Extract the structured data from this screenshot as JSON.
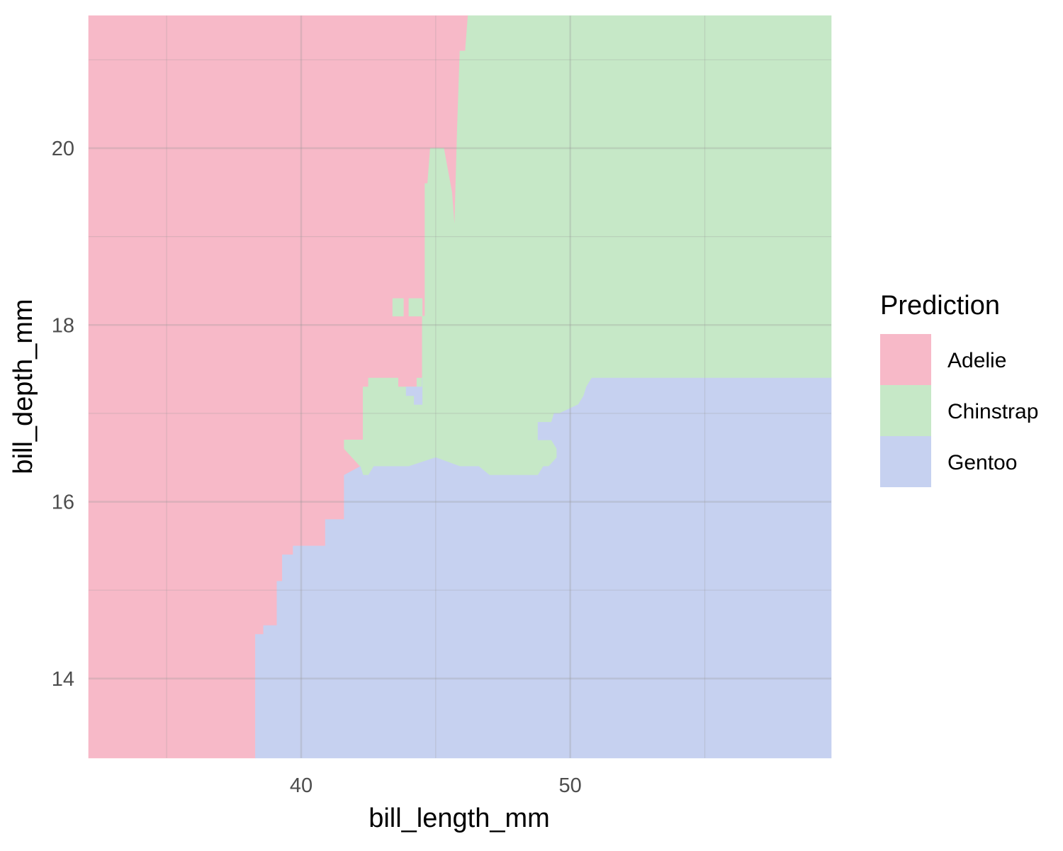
{
  "chart_data": {
    "type": "heatmap",
    "title": "",
    "xlabel": "bill_length_mm",
    "ylabel": "bill_depth_mm",
    "xlim": [
      32.1,
      59.7
    ],
    "ylim": [
      13.1,
      21.5
    ],
    "x_ticks": [
      40,
      50
    ],
    "y_ticks": [
      14,
      16,
      18,
      20
    ],
    "x_tick_labels": [
      "40",
      "50"
    ],
    "y_tick_labels": [
      "14",
      "16",
      "18",
      "20"
    ],
    "grid": true,
    "legend": {
      "title": "Prediction",
      "placement": "right",
      "entries": [
        {
          "label": "Adelie",
          "color": "#f7b9c8"
        },
        {
          "label": "Chinstrap",
          "color": "#c6e8c7"
        },
        {
          "label": "Gentoo",
          "color": "#c6d1f0"
        }
      ]
    },
    "regions": [
      {
        "class": "Adelie",
        "color": "#f7b9c8",
        "polygon": [
          [
            32.1,
            13.1
          ],
          [
            38.3,
            13.1
          ],
          [
            38.3,
            14.5
          ],
          [
            38.6,
            14.5
          ],
          [
            38.6,
            14.6
          ],
          [
            39.1,
            14.6
          ],
          [
            39.1,
            15.1
          ],
          [
            39.3,
            15.1
          ],
          [
            39.3,
            15.4
          ],
          [
            39.7,
            15.4
          ],
          [
            39.7,
            15.5
          ],
          [
            40.2,
            15.5
          ],
          [
            40.2,
            15.5
          ],
          [
            40.9,
            15.5
          ],
          [
            40.9,
            15.8
          ],
          [
            41.6,
            15.8
          ],
          [
            41.6,
            16.3
          ],
          [
            42.2,
            16.3
          ],
          [
            42.2,
            16.4
          ],
          [
            42.3,
            16.4
          ],
          [
            42.3,
            17.3
          ],
          [
            42.5,
            17.3
          ],
          [
            42.5,
            17.4
          ],
          [
            43.0,
            17.4
          ],
          [
            43.0,
            17.4
          ],
          [
            43.6,
            17.4
          ],
          [
            43.6,
            17.3
          ],
          [
            44.3,
            17.3
          ],
          [
            44.3,
            17.4
          ],
          [
            44.5,
            17.4
          ],
          [
            44.5,
            18.1
          ],
          [
            44.6,
            18.1
          ],
          [
            44.6,
            18.6
          ],
          [
            44.6,
            19.6
          ],
          [
            44.7,
            19.6
          ],
          [
            44.8,
            20.0
          ],
          [
            45.3,
            20.0
          ],
          [
            45.6,
            19.5
          ],
          [
            45.7,
            19.1
          ],
          [
            45.8,
            20.2
          ],
          [
            45.9,
            21.1
          ],
          [
            46.1,
            21.1
          ],
          [
            46.2,
            21.5
          ],
          [
            32.1,
            21.5
          ]
        ]
      },
      {
        "class": "Chinstrap",
        "color": "#c6e8c7",
        "polygon": [
          [
            46.2,
            21.5
          ],
          [
            59.7,
            21.5
          ],
          [
            59.7,
            17.4
          ],
          [
            50.8,
            17.4
          ],
          [
            50.6,
            17.3
          ],
          [
            50.5,
            17.2
          ],
          [
            50.3,
            17.1
          ],
          [
            49.6,
            17.0
          ],
          [
            49.4,
            17.0
          ],
          [
            49.3,
            16.9
          ],
          [
            48.8,
            16.9
          ],
          [
            48.8,
            16.7
          ],
          [
            49.3,
            16.7
          ],
          [
            49.5,
            16.6
          ],
          [
            49.5,
            16.5
          ],
          [
            49.2,
            16.4
          ],
          [
            49.0,
            16.4
          ],
          [
            48.8,
            16.3
          ],
          [
            47.0,
            16.3
          ],
          [
            46.6,
            16.4
          ],
          [
            45.9,
            16.4
          ],
          [
            45.0,
            16.5
          ],
          [
            44.0,
            16.4
          ],
          [
            43.3,
            16.4
          ],
          [
            42.7,
            16.4
          ],
          [
            42.5,
            16.3
          ],
          [
            42.3,
            16.3
          ],
          [
            42.2,
            16.4
          ],
          [
            41.6,
            16.6
          ],
          [
            41.6,
            16.7
          ],
          [
            42.3,
            16.7
          ],
          [
            42.3,
            17.3
          ],
          [
            42.5,
            17.3
          ],
          [
            42.5,
            17.4
          ],
          [
            43.0,
            17.4
          ],
          [
            43.6,
            17.4
          ],
          [
            43.6,
            17.3
          ],
          [
            44.3,
            17.3
          ],
          [
            44.3,
            17.4
          ],
          [
            44.5,
            17.4
          ],
          [
            44.5,
            18.1
          ],
          [
            44.6,
            18.1
          ],
          [
            44.6,
            18.6
          ],
          [
            44.6,
            19.6
          ],
          [
            44.7,
            19.6
          ],
          [
            44.8,
            20.0
          ],
          [
            45.3,
            20.0
          ],
          [
            45.6,
            19.5
          ],
          [
            45.7,
            19.1
          ],
          [
            45.8,
            20.2
          ],
          [
            45.9,
            21.1
          ],
          [
            46.1,
            21.1
          ]
        ]
      },
      {
        "class": "Gentoo",
        "color": "#c6d1f0",
        "polygon": [
          [
            38.3,
            13.1
          ],
          [
            59.7,
            13.1
          ],
          [
            59.7,
            17.4
          ],
          [
            50.8,
            17.4
          ],
          [
            50.6,
            17.3
          ],
          [
            50.5,
            17.2
          ],
          [
            50.3,
            17.1
          ],
          [
            49.6,
            17.0
          ],
          [
            49.4,
            17.0
          ],
          [
            49.3,
            16.9
          ],
          [
            48.8,
            16.9
          ],
          [
            48.8,
            16.7
          ],
          [
            49.3,
            16.7
          ],
          [
            49.5,
            16.6
          ],
          [
            49.5,
            16.5
          ],
          [
            49.2,
            16.4
          ],
          [
            49.0,
            16.4
          ],
          [
            48.8,
            16.3
          ],
          [
            47.0,
            16.3
          ],
          [
            46.6,
            16.4
          ],
          [
            45.9,
            16.4
          ],
          [
            45.0,
            16.5
          ],
          [
            44.0,
            16.4
          ],
          [
            43.3,
            16.4
          ],
          [
            42.7,
            16.4
          ],
          [
            42.5,
            16.3
          ],
          [
            42.3,
            16.3
          ],
          [
            42.2,
            16.4
          ],
          [
            41.6,
            16.3
          ],
          [
            41.6,
            15.8
          ],
          [
            40.9,
            15.8
          ],
          [
            40.9,
            15.5
          ],
          [
            40.2,
            15.5
          ],
          [
            39.7,
            15.5
          ],
          [
            39.7,
            15.4
          ],
          [
            39.3,
            15.4
          ],
          [
            39.3,
            15.1
          ],
          [
            39.1,
            15.1
          ],
          [
            39.1,
            14.6
          ],
          [
            38.6,
            14.6
          ],
          [
            38.6,
            14.5
          ],
          [
            38.3,
            14.5
          ]
        ]
      },
      {
        "class": "Chinstrap",
        "color": "#c6e8c7",
        "polygon": [
          [
            43.4,
            18.1
          ],
          [
            43.8,
            18.1
          ],
          [
            43.8,
            18.3
          ],
          [
            43.4,
            18.3
          ]
        ]
      },
      {
        "class": "Chinstrap",
        "color": "#c6e8c7",
        "polygon": [
          [
            44.0,
            18.1
          ],
          [
            44.5,
            18.1
          ],
          [
            44.5,
            18.3
          ],
          [
            44.0,
            18.3
          ]
        ]
      },
      {
        "class": "Gentoo",
        "color": "#c6d1f0",
        "polygon": [
          [
            43.9,
            17.3
          ],
          [
            44.5,
            17.3
          ],
          [
            44.5,
            17.4
          ],
          [
            44.5,
            17.1
          ],
          [
            44.2,
            17.1
          ],
          [
            44.2,
            17.2
          ],
          [
            43.9,
            17.2
          ]
        ]
      }
    ]
  }
}
